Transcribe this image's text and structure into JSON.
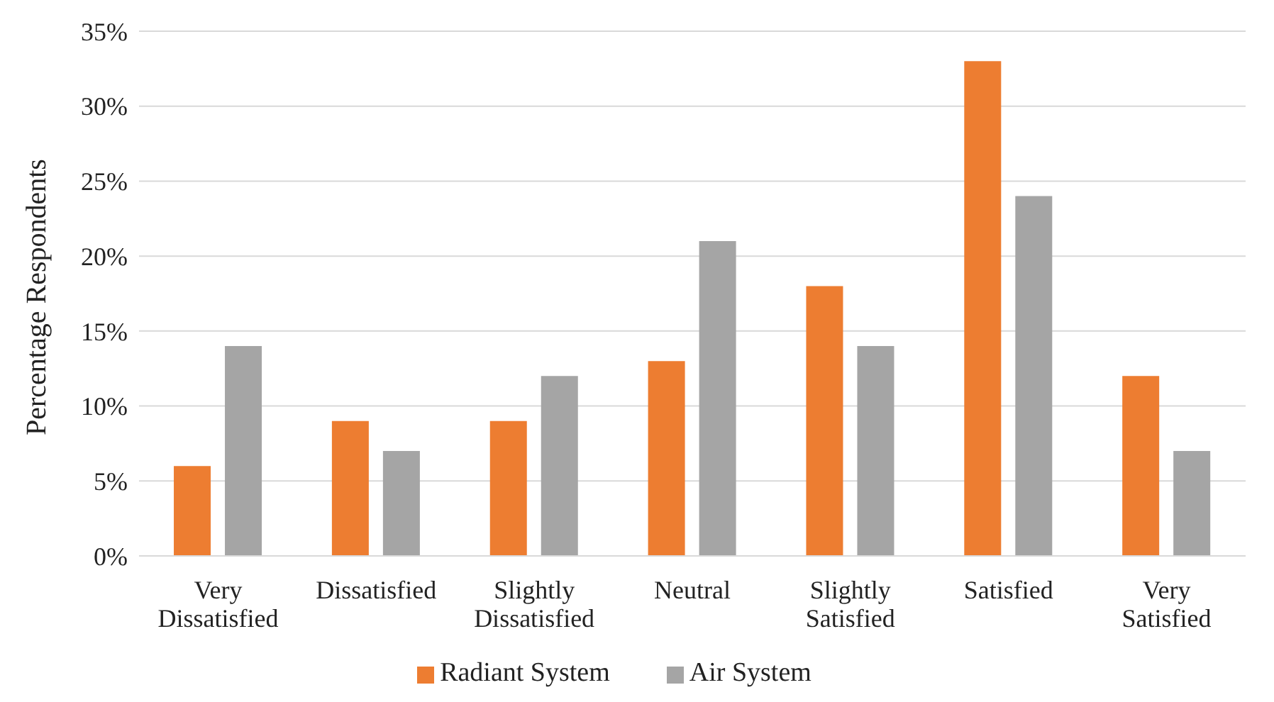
{
  "chart_data": {
    "type": "bar",
    "ylabel": "Percentage Respondents",
    "categories": [
      "Very Dissatisfied",
      "Dissatisfied",
      "Slightly Dissatisfied",
      "Neutral",
      "Slightly Satisfied",
      "Satisfied",
      "Very Satisfied"
    ],
    "series": [
      {
        "name": "Radiant System",
        "color": "#ed7d31",
        "values": [
          6,
          9,
          9,
          13,
          18,
          33,
          12
        ]
      },
      {
        "name": "Air System",
        "color": "#a5a5a5",
        "values": [
          14,
          7,
          12,
          21,
          14,
          24,
          7
        ]
      }
    ],
    "ylim": [
      0,
      35
    ],
    "yticks": [
      {
        "value": 0,
        "label": "0%"
      },
      {
        "value": 5,
        "label": "5%"
      },
      {
        "value": 10,
        "label": "10%"
      },
      {
        "value": 15,
        "label": "15%"
      },
      {
        "value": 20,
        "label": "20%"
      },
      {
        "value": 25,
        "label": "25%"
      },
      {
        "value": 30,
        "label": "30%"
      },
      {
        "value": 35,
        "label": "35%"
      }
    ],
    "grid": "y",
    "legend": "bottom"
  }
}
